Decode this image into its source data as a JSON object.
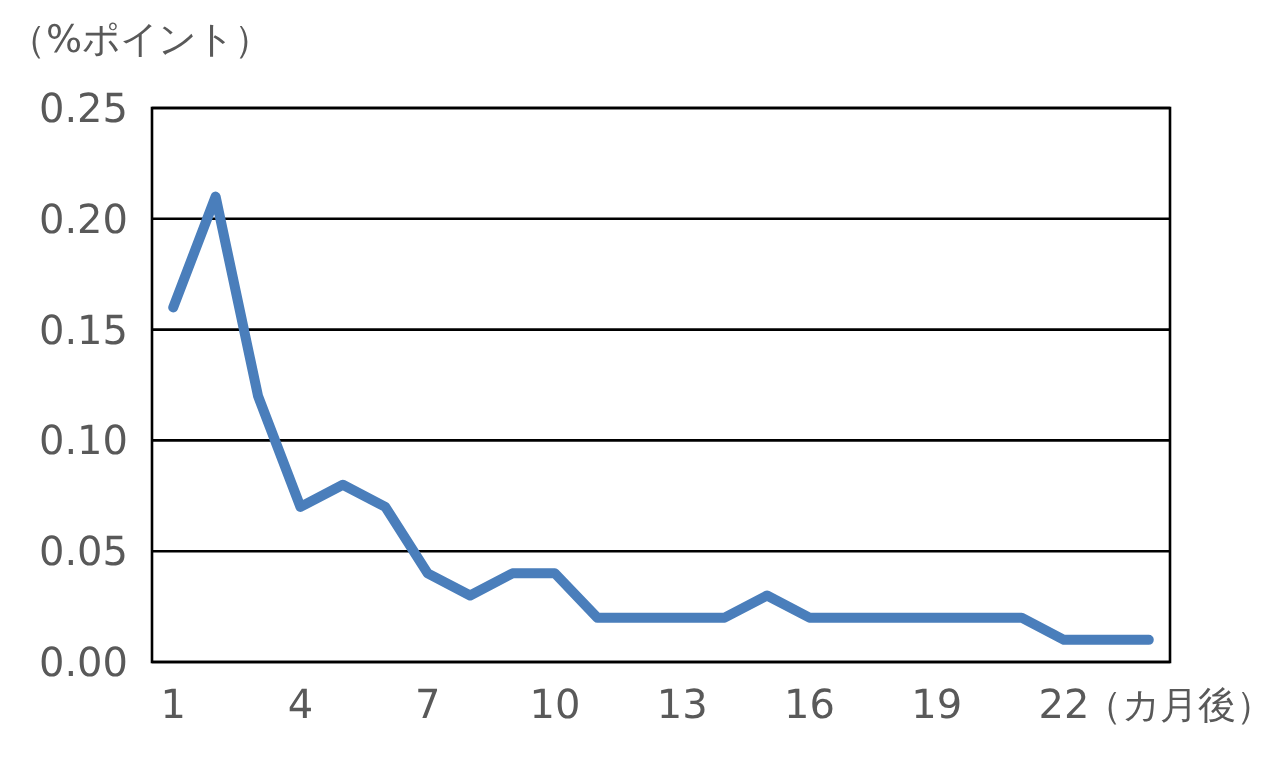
{
  "chart_data": {
    "type": "line",
    "ylabel": "（%ポイント）",
    "xlabel": "（カ月後）",
    "categories": [
      "1",
      null,
      null,
      "4",
      null,
      null,
      "7",
      null,
      null,
      "10",
      null,
      null,
      "13",
      null,
      null,
      "16",
      null,
      null,
      "19",
      null,
      null,
      "22",
      null,
      null
    ],
    "series": [
      {
        "color": "#4a7ebb",
        "values": [
          0.16,
          0.21,
          0.12,
          0.07,
          0.08,
          0.07,
          0.04,
          0.03,
          0.04,
          0.04,
          0.02,
          0.02,
          0.02,
          0.02,
          0.03,
          0.02,
          0.02,
          0.02,
          0.02,
          0.02,
          0.02,
          0.01,
          0.01,
          0.01
        ]
      }
    ],
    "ylim": [
      0,
      0.25
    ],
    "yticks": [
      {
        "value": 0,
        "label": "0.00"
      },
      {
        "value": 0.05,
        "label": "0.05"
      },
      {
        "value": 0.1,
        "label": "0.10"
      },
      {
        "value": 0.15,
        "label": "0.15"
      },
      {
        "value": 0.2,
        "label": "0.20"
      },
      {
        "value": 0.25,
        "label": "0.25"
      }
    ],
    "grid": "y",
    "marker": "none",
    "line_style": "solid"
  }
}
